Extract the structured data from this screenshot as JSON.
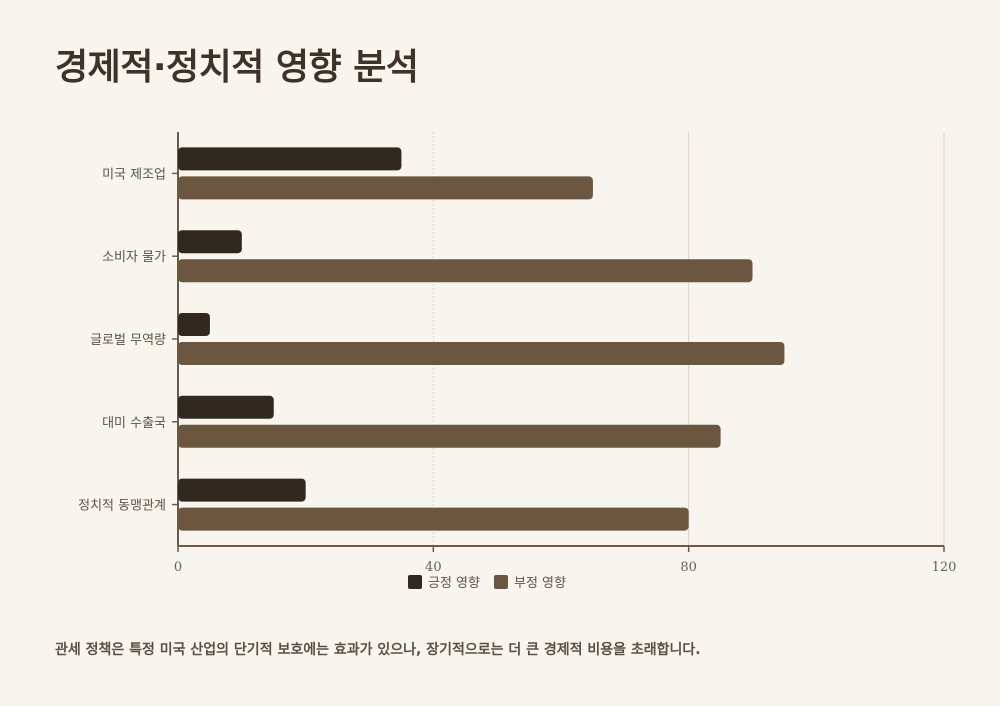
{
  "title": "경제적·정치적 영향 분석",
  "caption": "관세 정책은 특정 미국 산업의 단기적 보호에는 효과가 있으나, 장기적으로는 더 큰 경제적 비용을 초래합니다.",
  "colors": {
    "positive": "#31291f",
    "negative": "#6b5640",
    "axis": "#6b5b4b",
    "grid": "#d9d3c9",
    "background": "#f8f5ee"
  },
  "legend": {
    "positive_label": "긍정 영향",
    "negative_label": "부정 영향"
  },
  "chart_data": {
    "type": "bar",
    "orientation": "horizontal",
    "categories": [
      "미국 제조업",
      "소비자 물가",
      "글로벌 무역량",
      "대미 수출국",
      "정치적 동맹관계"
    ],
    "series": [
      {
        "name": "긍정 영향",
        "values": [
          35,
          10,
          5,
          15,
          20
        ]
      },
      {
        "name": "부정 영향",
        "values": [
          65,
          90,
          95,
          85,
          80
        ]
      }
    ],
    "xlim": [
      0,
      120
    ],
    "xticks": [
      "0",
      "40",
      "80",
      "120"
    ],
    "xtick_values": [
      0,
      40,
      80,
      120
    ],
    "grid": "vertical",
    "legend_position": "bottom"
  }
}
